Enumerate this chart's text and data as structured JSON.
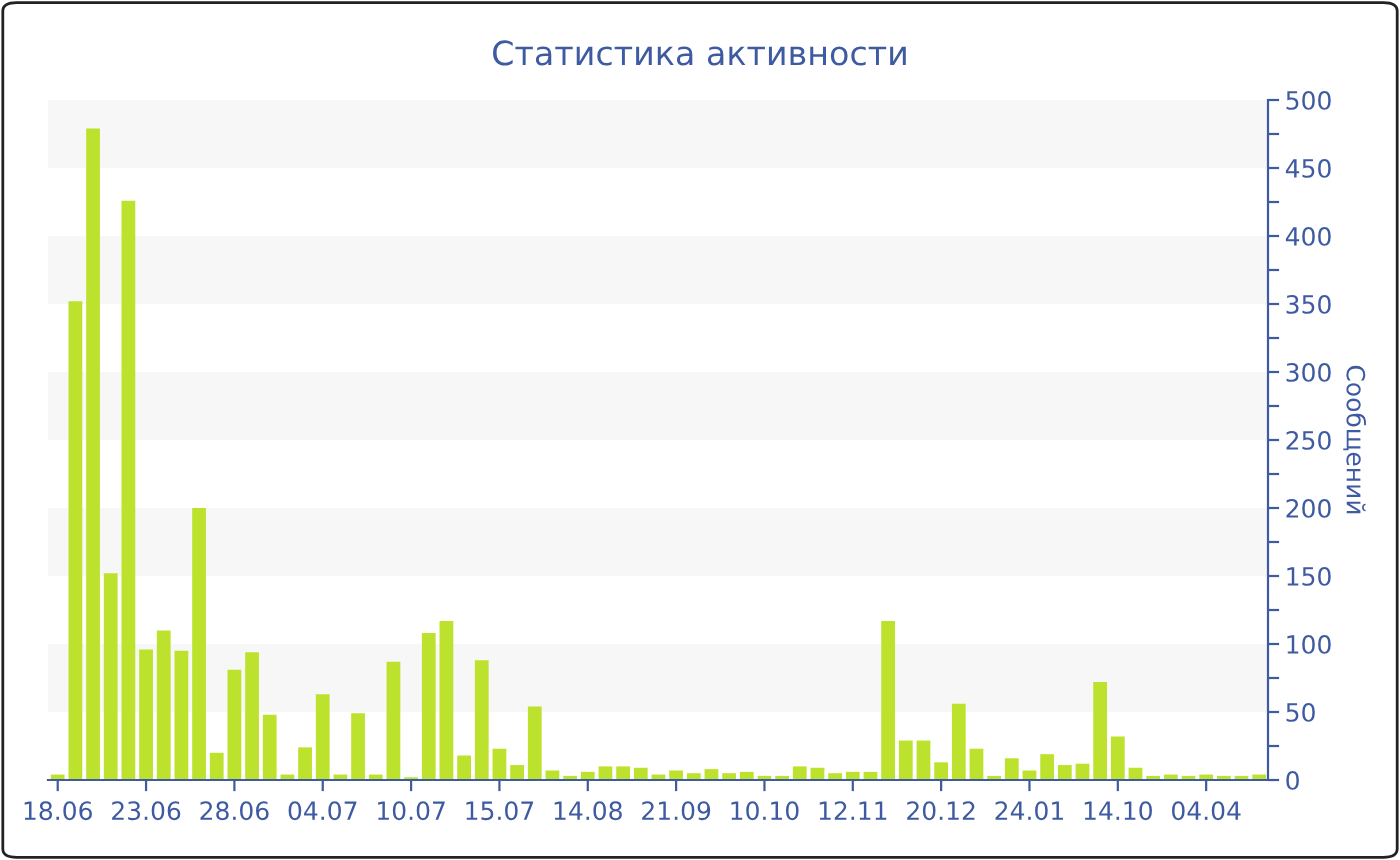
{
  "chart_data": {
    "type": "bar",
    "title": "Статистика активности",
    "ylabel": "Сообщений",
    "categories": [
      "18.06",
      null,
      null,
      null,
      null,
      "23.06",
      null,
      null,
      null,
      null,
      "28.06",
      null,
      null,
      null,
      null,
      "04.07",
      null,
      null,
      null,
      null,
      "10.07",
      null,
      null,
      null,
      null,
      "15.07",
      null,
      null,
      null,
      null,
      "14.08",
      null,
      null,
      null,
      null,
      "21.09",
      null,
      null,
      null,
      null,
      "10.10",
      null,
      null,
      null,
      null,
      "12.11",
      null,
      null,
      null,
      null,
      "20.12",
      null,
      null,
      null,
      null,
      "24.01",
      null,
      null,
      null,
      null,
      "14.10",
      null,
      null,
      null,
      null,
      "04.04",
      null,
      null,
      null
    ],
    "values": [
      4,
      352,
      479,
      152,
      426,
      96,
      110,
      95,
      200,
      20,
      81,
      94,
      48,
      4,
      24,
      63,
      4,
      49,
      4,
      87,
      2,
      108,
      117,
      18,
      88,
      23,
      11,
      54,
      7,
      3,
      6,
      10,
      10,
      9,
      4,
      7,
      5,
      8,
      5,
      6,
      3,
      3,
      10,
      9,
      5,
      6,
      6,
      117,
      29,
      29,
      13,
      56,
      23,
      3,
      16,
      7,
      19,
      11,
      12,
      72,
      32,
      9,
      3,
      4,
      3,
      4,
      3,
      3,
      4
    ],
    "color": "#bde22e",
    "ylim": [
      0,
      500
    ],
    "yticks": [
      0,
      {
        "value": 25,
        "label": null
      },
      50,
      {
        "value": 75,
        "label": null
      },
      100,
      {
        "value": 125,
        "label": null
      },
      150,
      {
        "value": 175,
        "label": null
      },
      200,
      {
        "value": 225,
        "label": null
      },
      250,
      {
        "value": 275,
        "label": null
      },
      300,
      {
        "value": 325,
        "label": null
      },
      350,
      {
        "value": 375,
        "label": null
      },
      400,
      {
        "value": 425,
        "label": null
      },
      450,
      {
        "value": 475,
        "label": null
      },
      500
    ],
    "bands": [
      {
        "axis": "y",
        "from": 50,
        "to": 100,
        "color": "#f7f7f7"
      },
      {
        "axis": "y",
        "from": 150,
        "to": 200,
        "color": "#f7f7f7"
      },
      {
        "axis": "y",
        "from": 250,
        "to": 300,
        "color": "#f7f7f7"
      },
      {
        "axis": "y",
        "from": 350,
        "to": 400,
        "color": "#f7f7f7"
      },
      {
        "axis": "y",
        "from": 450,
        "to": 500,
        "color": "#f7f7f7"
      }
    ],
    "grid": false,
    "legend": false
  }
}
